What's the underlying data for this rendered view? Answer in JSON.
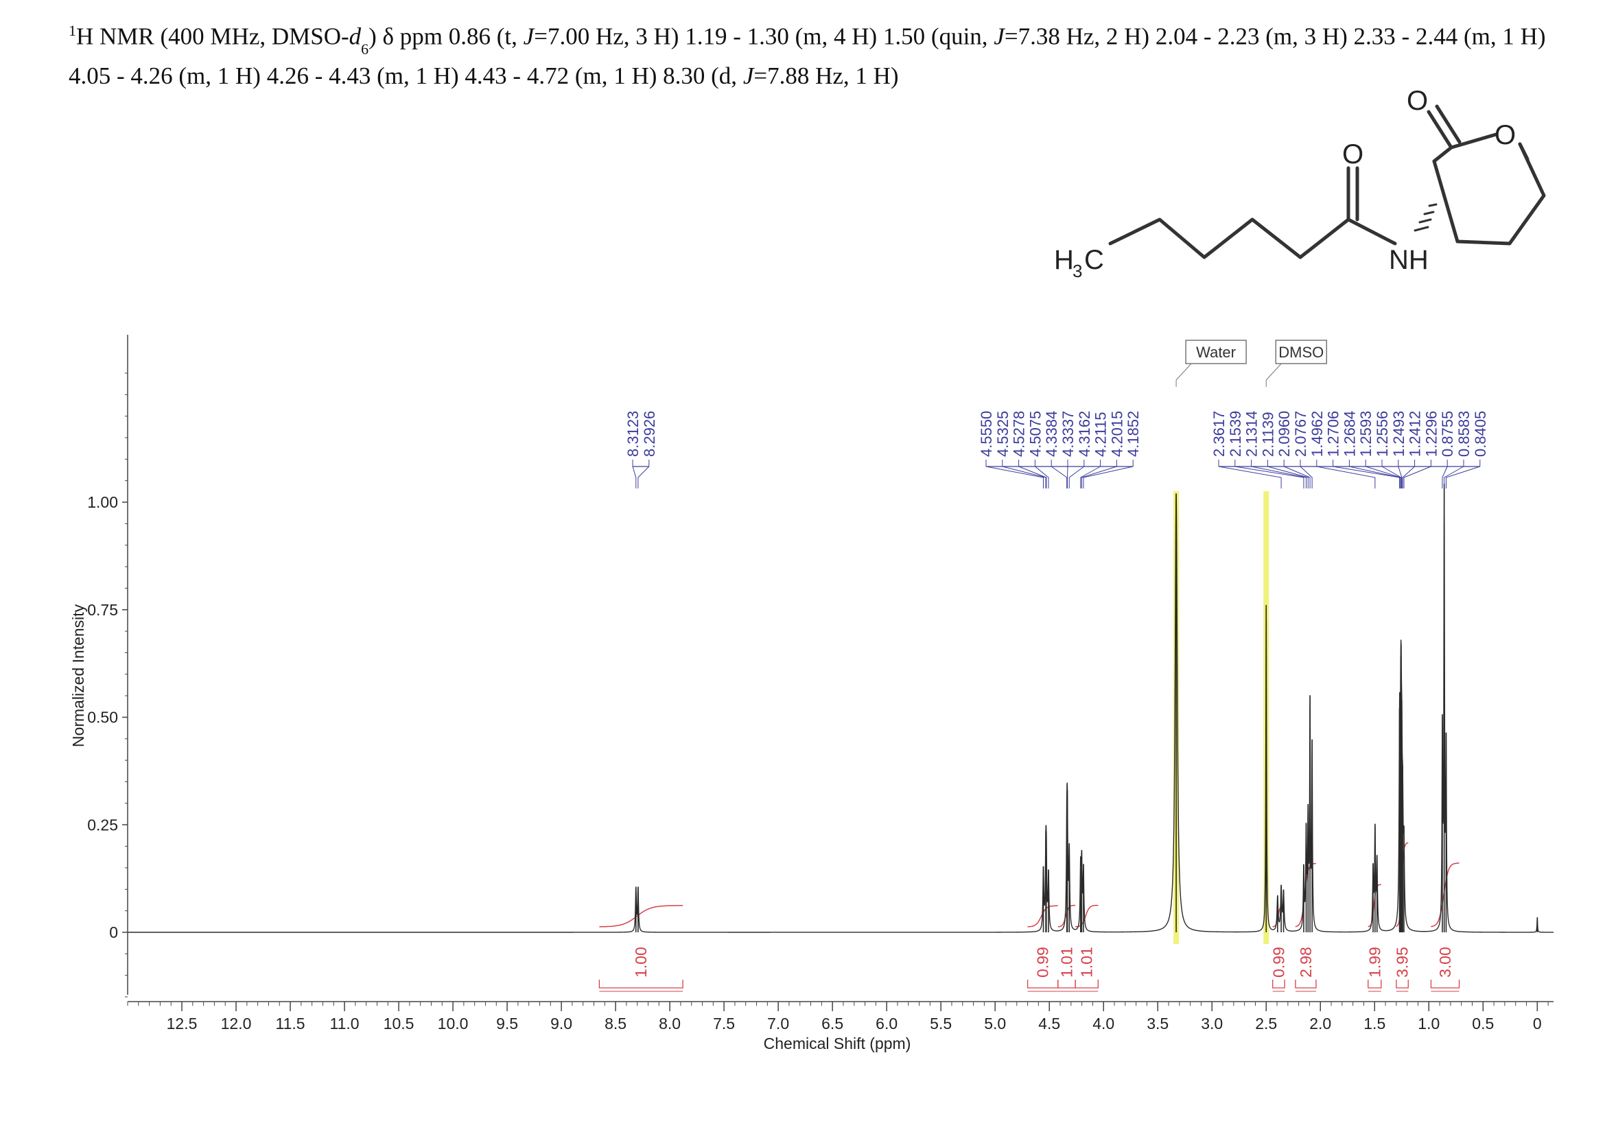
{
  "caption": {
    "iso_mass": "1",
    "text_a": "H NMR (400 MHz, DMSO-",
    "d_italic": "d",
    "d_subscript": "6",
    "text_b": ") δ ppm 0.86 (t, ",
    "j1": "J",
    "text_c": "=7.00 Hz, 3 H) 1.19 - 1.30 (m, 4 H) 1.50 (quin, ",
    "j2": "J",
    "text_d": "=7.38 Hz, 2 H) 2.04 - 2.23 (m, 3 H) 2.33 - 2.44 (m, 1 H) 4.05 - 4.26 (m, 1 H) 4.26 - 4.43 (m, 1 H) 4.43 - 4.72 (m, 1 H) 8.30 (d, ",
    "j3": "J",
    "text_e": "=7.88 Hz, 1 H)"
  },
  "structure": {
    "atoms": {
      "methyl_H": "H",
      "methyl_sub": "3",
      "methyl_C": "C",
      "amide_O": "O",
      "NH": "NH",
      "lactone_carbonyl_O": "O",
      "ring_O": "O"
    }
  },
  "chart_data": {
    "type": "line",
    "xlabel": "Chemical Shift (ppm)",
    "ylabel": "Normalized Intensity",
    "xlim": [
      13.0,
      -0.15
    ],
    "ylim": [
      -0.16,
      1.4
    ],
    "x_ticks": [
      "12.5",
      "12.0",
      "11.5",
      "11.0",
      "10.5",
      "10.0",
      "9.5",
      "9.0",
      "8.5",
      "8.0",
      "7.5",
      "7.0",
      "6.5",
      "6.0",
      "5.5",
      "5.0",
      "4.5",
      "4.0",
      "3.5",
      "3.0",
      "2.5",
      "2.0",
      "1.5",
      "1.0",
      "0.5",
      "0"
    ],
    "y_ticks": [
      "0",
      "0.25",
      "0.50",
      "0.75",
      "1.00"
    ],
    "solvent_labels": [
      {
        "text": "Water",
        "ppm": 3.33
      },
      {
        "text": "DMSO",
        "ppm": 2.5
      }
    ],
    "peak_label_groups": [
      {
        "labels": [
          "8.3123",
          "8.2926"
        ]
      },
      {
        "labels": [
          "4.5550",
          "4.5325",
          "4.5278",
          "4.5075",
          "4.3384",
          "4.3337",
          "4.3162",
          "4.2115",
          "4.2015",
          "4.1852"
        ]
      },
      {
        "labels": [
          "2.3617",
          "2.1539",
          "2.1314",
          "2.1139",
          "2.0960",
          "2.0767",
          "1.4962",
          "1.2706",
          "1.2684",
          "1.2593",
          "1.2556",
          "1.2493",
          "1.2412",
          "1.2296",
          "0.8755",
          "0.8583",
          "0.8405"
        ]
      }
    ],
    "integrals": [
      {
        "label": "1.00",
        "from": 8.65,
        "to": 7.88
      },
      {
        "label": "0.99",
        "from": 4.7,
        "to": 4.42
      },
      {
        "label": "1.01",
        "from": 4.42,
        "to": 4.26
      },
      {
        "label": "1.01",
        "from": 4.26,
        "to": 4.05
      },
      {
        "label": "0.99",
        "from": 2.44,
        "to": 2.33
      },
      {
        "label": "2.98",
        "from": 2.23,
        "to": 2.04
      },
      {
        "label": "1.99",
        "from": 1.56,
        "to": 1.44
      },
      {
        "label": "3.95",
        "from": 1.3,
        "to": 1.19
      },
      {
        "label": "3.00",
        "from": 0.98,
        "to": 0.72
      }
    ],
    "peaks": [
      {
        "ppm": 8.3123,
        "h": 0.1,
        "w": 0.005
      },
      {
        "ppm": 8.2926,
        "h": 0.1,
        "w": 0.005
      },
      {
        "ppm": 4.555,
        "h": 0.14,
        "w": 0.005
      },
      {
        "ppm": 4.5325,
        "h": 0.15,
        "w": 0.005
      },
      {
        "ppm": 4.5278,
        "h": 0.14,
        "w": 0.005
      },
      {
        "ppm": 4.5075,
        "h": 0.13,
        "w": 0.005
      },
      {
        "ppm": 4.3384,
        "h": 0.2,
        "w": 0.005
      },
      {
        "ppm": 4.3337,
        "h": 0.21,
        "w": 0.005
      },
      {
        "ppm": 4.3162,
        "h": 0.18,
        "w": 0.005
      },
      {
        "ppm": 4.2115,
        "h": 0.14,
        "w": 0.005
      },
      {
        "ppm": 4.2015,
        "h": 0.15,
        "w": 0.005
      },
      {
        "ppm": 4.1852,
        "h": 0.14,
        "w": 0.005
      },
      {
        "ppm": 3.33,
        "h": 1.02,
        "w": 0.012
      },
      {
        "ppm": 2.5,
        "h": 0.76,
        "w": 0.004
      },
      {
        "ppm": 2.3617,
        "h": 0.1,
        "w": 0.006
      },
      {
        "ppm": 2.34,
        "h": 0.09,
        "w": 0.006
      },
      {
        "ppm": 2.395,
        "h": 0.08,
        "w": 0.006
      },
      {
        "ppm": 2.1539,
        "h": 0.14,
        "w": 0.005
      },
      {
        "ppm": 2.1314,
        "h": 0.22,
        "w": 0.005
      },
      {
        "ppm": 2.1139,
        "h": 0.25,
        "w": 0.005
      },
      {
        "ppm": 2.096,
        "h": 0.51,
        "w": 0.004
      },
      {
        "ppm": 2.0767,
        "h": 0.42,
        "w": 0.004
      },
      {
        "ppm": 1.514,
        "h": 0.14,
        "w": 0.005
      },
      {
        "ppm": 1.4962,
        "h": 0.23,
        "w": 0.005
      },
      {
        "ppm": 1.478,
        "h": 0.16,
        "w": 0.005
      },
      {
        "ppm": 1.2706,
        "h": 0.22,
        "w": 0.005
      },
      {
        "ppm": 1.2684,
        "h": 0.24,
        "w": 0.005
      },
      {
        "ppm": 1.2593,
        "h": 0.28,
        "w": 0.005
      },
      {
        "ppm": 1.2556,
        "h": 0.3,
        "w": 0.005
      },
      {
        "ppm": 1.2493,
        "h": 0.27,
        "w": 0.005
      },
      {
        "ppm": 1.2412,
        "h": 0.22,
        "w": 0.005
      },
      {
        "ppm": 1.2296,
        "h": 0.17,
        "w": 0.005
      },
      {
        "ppm": 0.8755,
        "h": 0.45,
        "w": 0.004
      },
      {
        "ppm": 0.8583,
        "h": 1.0,
        "w": 0.004
      },
      {
        "ppm": 0.8405,
        "h": 0.41,
        "w": 0.004
      },
      {
        "ppm": 0.0,
        "h": 0.035,
        "w": 0.003
      }
    ],
    "colors": {
      "spectrum": "#2a2a2a",
      "peak_label": "#3c3c9c",
      "integral": "#d6404a",
      "solvent_highlight": "#f1f27a",
      "axis": "#444444"
    }
  }
}
